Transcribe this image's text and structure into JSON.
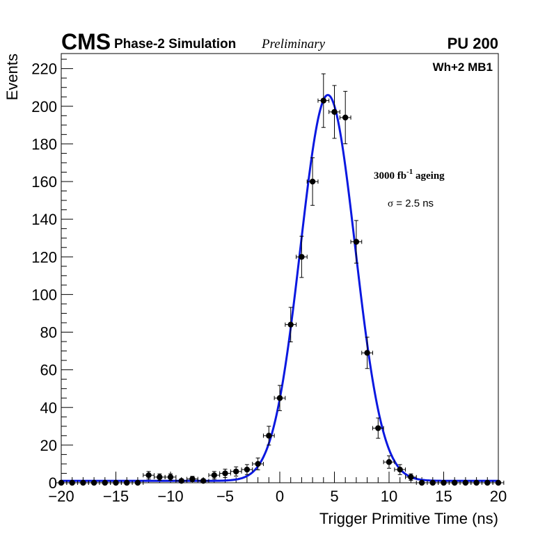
{
  "header": {
    "experiment": "CMS",
    "subtitle": "Phase-2 Simulation",
    "status": "Preliminary",
    "pileup": "PU 200"
  },
  "labels": {
    "chamber": "Wh+2 MB1",
    "ageing_prefix": "3000 fb",
    "ageing_exp": "-1",
    "ageing_suffix": " ageing",
    "sigma_symbol": "σ",
    "sigma_text": " = 2.5 ns"
  },
  "chart_data": {
    "type": "scatter",
    "title": "",
    "xlabel": "Trigger Primitive Time (ns)",
    "ylabel": "Events",
    "xlim": [
      -20,
      20
    ],
    "ylim": [
      0,
      228
    ],
    "x_ticks": [
      -20,
      -15,
      -10,
      -5,
      0,
      5,
      10,
      15,
      20
    ],
    "x_tick_labels": [
      "−20",
      "−15",
      "−10",
      "−5",
      "0",
      "5",
      "10",
      "15",
      "20"
    ],
    "y_ticks": [
      0,
      20,
      40,
      60,
      80,
      100,
      120,
      140,
      160,
      180,
      200,
      220
    ],
    "y_tick_labels": [
      "0",
      "20",
      "40",
      "60",
      "80",
      "100",
      "120",
      "140",
      "160",
      "180",
      "200",
      "220"
    ],
    "grid": false,
    "bin_width": 1,
    "x": [
      -20,
      -19,
      -18,
      -17,
      -16,
      -15,
      -14,
      -13,
      -12,
      -11,
      -10,
      -9,
      -8,
      -7,
      -6,
      -5,
      -4,
      -3,
      -2,
      -1,
      0,
      1,
      2,
      3,
      4,
      5,
      6,
      7,
      8,
      9,
      10,
      11,
      12,
      13,
      14,
      15,
      16,
      17,
      18,
      19,
      20
    ],
    "values": [
      0,
      0,
      0,
      0,
      0,
      0,
      0,
      0,
      4,
      3,
      3,
      1,
      2,
      1,
      4,
      5,
      6,
      7,
      10,
      25,
      45,
      84,
      120,
      160,
      203,
      197,
      194,
      128,
      69,
      29,
      11,
      7,
      3,
      0,
      0,
      0,
      0,
      0,
      0,
      0,
      0
    ],
    "series": [
      {
        "name": "Simulation",
        "kind": "points",
        "color": "#000000"
      },
      {
        "name": "Gaussian fit",
        "kind": "line",
        "color": "#0a18e0",
        "amplitude": 205,
        "mean": 4.4,
        "sigma": 2.5,
        "baseline": 1
      }
    ]
  }
}
